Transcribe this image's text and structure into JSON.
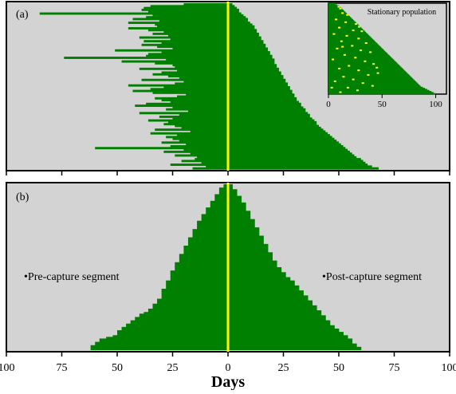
{
  "figure": {
    "xlabel": "Days",
    "x_tick_labels": [
      "100",
      "75",
      "50",
      "25",
      "0",
      "25",
      "50",
      "75",
      "100"
    ],
    "colors": {
      "background": "#d3d3d3",
      "bars": "#008000",
      "capture_line": "#ffff00",
      "inset_dots": "#ffff33",
      "frame": "#000000"
    }
  },
  "chart_data": [
    {
      "panel_label": "(a)",
      "type": "bar",
      "orientation": "horizontal",
      "description_of_values": "per-individual residence intervals; negative = days before capture, positive = days after capture; sorted by post-capture length",
      "xlim": [
        -100,
        100
      ],
      "pre_days": [
        20,
        35,
        38,
        39,
        36,
        85,
        34,
        37,
        43,
        31,
        45,
        33,
        32,
        45,
        36,
        29,
        34,
        27,
        40,
        26,
        38,
        30,
        39,
        32,
        25,
        51,
        30,
        36,
        37,
        74,
        28,
        48,
        33,
        25,
        24,
        40,
        23,
        30,
        34,
        27,
        22,
        39,
        20,
        24,
        45,
        29,
        35,
        43,
        34,
        19,
        23,
        33,
        30,
        26,
        37,
        42,
        25,
        28,
        18,
        40,
        22,
        31,
        25,
        36,
        27,
        29,
        24,
        21,
        33,
        17,
        35,
        23,
        28,
        25,
        22,
        30,
        19,
        26,
        60,
        20,
        29,
        17,
        24,
        14,
        15,
        21,
        12,
        26,
        10,
        16
      ],
      "post_days": [
        2,
        3,
        4,
        5,
        5,
        6,
        7,
        8,
        9,
        9,
        10,
        11,
        12,
        12,
        13,
        13,
        14,
        14,
        15,
        15,
        16,
        16,
        17,
        17,
        18,
        18,
        19,
        19,
        20,
        20,
        21,
        21,
        21,
        22,
        22,
        23,
        23,
        24,
        24,
        25,
        25,
        26,
        26,
        27,
        27,
        28,
        28,
        29,
        29,
        30,
        30,
        31,
        31,
        32,
        33,
        33,
        34,
        35,
        35,
        36,
        37,
        37,
        38,
        39,
        40,
        40,
        41,
        42,
        43,
        44,
        45,
        46,
        47,
        48,
        49,
        50,
        51,
        52,
        53,
        54,
        55,
        56,
        57,
        58,
        60,
        61,
        62,
        63,
        65,
        68
      ],
      "inset": {
        "title": "Stationary population",
        "type": "bar",
        "orientation": "horizontal",
        "xlim": [
          0,
          110
        ],
        "x_tick_labels": [
          "0",
          "50",
          "100"
        ],
        "x_ticks": [
          0,
          50,
          100
        ],
        "bar_lengths": [
          6,
          8,
          10,
          11,
          12,
          13,
          14,
          15,
          16,
          17,
          18,
          19,
          20,
          21,
          22,
          23,
          24,
          25,
          26,
          27,
          28,
          29,
          30,
          31,
          32,
          33,
          34,
          35,
          36,
          37,
          38,
          39,
          40,
          41,
          42,
          43,
          44,
          45,
          46,
          47,
          48,
          49,
          50,
          51,
          52,
          53,
          54,
          55,
          56,
          57,
          58,
          59,
          60,
          61,
          62,
          63,
          64,
          65,
          66,
          67,
          68,
          69,
          70,
          71,
          72,
          73,
          74,
          75,
          76,
          77,
          78,
          79,
          80,
          81,
          82,
          83,
          84,
          85,
          86,
          88,
          90,
          92,
          94,
          96,
          98,
          100
        ],
        "dots": [
          [
            10,
            0.05
          ],
          [
            18,
            0.03
          ],
          [
            12,
            0.1
          ],
          [
            20,
            0.12
          ],
          [
            6,
            0.17
          ],
          [
            15,
            0.2
          ],
          [
            25,
            0.22
          ],
          [
            9,
            0.26
          ],
          [
            22,
            0.29
          ],
          [
            30,
            0.3
          ],
          [
            4,
            0.33
          ],
          [
            16,
            0.35
          ],
          [
            27,
            0.38
          ],
          [
            11,
            0.41
          ],
          [
            34,
            0.43
          ],
          [
            21,
            0.46
          ],
          [
            7,
            0.49
          ],
          [
            29,
            0.51
          ],
          [
            38,
            0.53
          ],
          [
            14,
            0.56
          ],
          [
            24,
            0.59
          ],
          [
            3,
            0.61
          ],
          [
            33,
            0.63
          ],
          [
            41,
            0.66
          ],
          [
            18,
            0.68
          ],
          [
            9,
            0.71
          ],
          [
            27,
            0.73
          ],
          [
            45,
            0.76
          ],
          [
            36,
            0.78
          ],
          [
            13,
            0.8
          ],
          [
            22,
            0.83
          ],
          [
            5,
            0.85
          ],
          [
            31,
            0.87
          ],
          [
            40,
            0.9
          ],
          [
            17,
            0.92
          ],
          [
            26,
            0.95
          ],
          [
            10,
            0.97
          ],
          [
            35,
            0.25
          ],
          [
            12,
            0.47
          ],
          [
            44,
            0.7
          ],
          [
            2,
            0.92
          ]
        ]
      }
    },
    {
      "panel_label": "(b)",
      "type": "bar",
      "description_of_values": "frequency profile of individuals present vs. days from capture",
      "xlim": [
        -100,
        100
      ],
      "annotations": [
        "•Pre-capture segment",
        "•Post-capture segment"
      ],
      "pre_profile": [
        [
          -62,
          0.02
        ],
        [
          -60,
          0.03
        ],
        [
          -58,
          0.05
        ],
        [
          -55,
          0.07
        ],
        [
          -52,
          0.08
        ],
        [
          -50,
          0.09
        ],
        [
          -48,
          0.12
        ],
        [
          -46,
          0.14
        ],
        [
          -44,
          0.16
        ],
        [
          -42,
          0.18
        ],
        [
          -40,
          0.2
        ],
        [
          -38,
          0.22
        ],
        [
          -36,
          0.23
        ],
        [
          -34,
          0.25
        ],
        [
          -32,
          0.28
        ],
        [
          -30,
          0.31
        ],
        [
          -28,
          0.37
        ],
        [
          -26,
          0.42
        ],
        [
          -24,
          0.48
        ],
        [
          -22,
          0.53
        ],
        [
          -20,
          0.58
        ],
        [
          -18,
          0.63
        ],
        [
          -16,
          0.68
        ],
        [
          -14,
          0.73
        ],
        [
          -12,
          0.78
        ],
        [
          -10,
          0.82
        ],
        [
          -8,
          0.86
        ],
        [
          -6,
          0.9
        ],
        [
          -4,
          0.94
        ],
        [
          -2,
          0.98
        ],
        [
          0,
          1.0
        ]
      ],
      "post_profile": [
        [
          0,
          1.0
        ],
        [
          2,
          0.97
        ],
        [
          4,
          0.93
        ],
        [
          6,
          0.89
        ],
        [
          8,
          0.84
        ],
        [
          10,
          0.79
        ],
        [
          12,
          0.74
        ],
        [
          14,
          0.69
        ],
        [
          16,
          0.64
        ],
        [
          18,
          0.59
        ],
        [
          20,
          0.54
        ],
        [
          22,
          0.5
        ],
        [
          24,
          0.47
        ],
        [
          26,
          0.44
        ],
        [
          28,
          0.42
        ],
        [
          30,
          0.39
        ],
        [
          32,
          0.36
        ],
        [
          34,
          0.33
        ],
        [
          36,
          0.3
        ],
        [
          38,
          0.27
        ],
        [
          40,
          0.24
        ],
        [
          42,
          0.21
        ],
        [
          44,
          0.18
        ],
        [
          46,
          0.15
        ],
        [
          48,
          0.13
        ],
        [
          50,
          0.11
        ],
        [
          52,
          0.09
        ],
        [
          54,
          0.07
        ],
        [
          56,
          0.04
        ],
        [
          58,
          0.02
        ],
        [
          60,
          0.0
        ]
      ]
    }
  ]
}
